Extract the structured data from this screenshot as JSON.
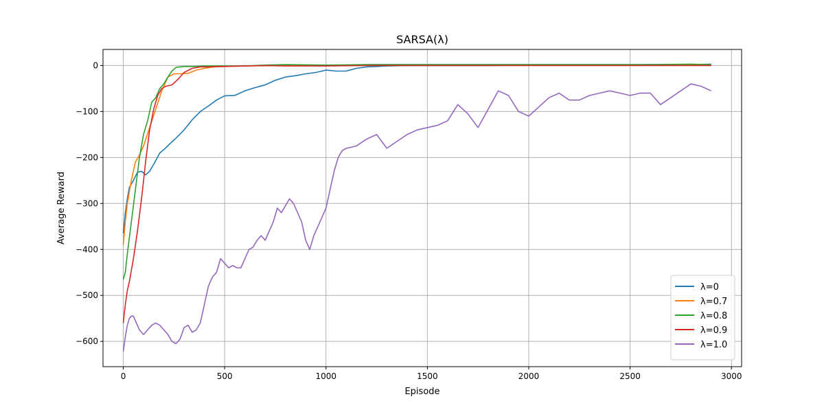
{
  "chart_data": {
    "type": "line",
    "title": "SARSA(λ)",
    "xlabel": "Episode",
    "ylabel": "Average Reward",
    "xlim": [
      -100,
      3050
    ],
    "ylim": [
      -655,
      35
    ],
    "xticks": [
      0,
      500,
      1000,
      1500,
      2000,
      2500,
      3000
    ],
    "yticks": [
      0,
      -100,
      -200,
      -300,
      -400,
      -500,
      -600
    ],
    "grid": true,
    "legend_position": "bottom-right",
    "series": [
      {
        "name": "λ=0",
        "color": "#1f77b4",
        "x": [
          0,
          10,
          20,
          30,
          50,
          70,
          90,
          110,
          130,
          150,
          180,
          200,
          230,
          260,
          300,
          340,
          380,
          420,
          460,
          500,
          550,
          600,
          650,
          700,
          750,
          800,
          850,
          900,
          950,
          1000,
          1050,
          1100,
          1150,
          1200,
          1250,
          1300,
          1400,
          1600,
          1800,
          2000,
          2200,
          2400,
          2600,
          2800,
          2900
        ],
        "y": [
          -365,
          -320,
          -290,
          -265,
          -250,
          -232,
          -230,
          -238,
          -230,
          -215,
          -190,
          -183,
          -170,
          -158,
          -140,
          -118,
          -100,
          -88,
          -75,
          -66,
          -65,
          -55,
          -48,
          -42,
          -32,
          -25,
          -22,
          -18,
          -15,
          -10,
          -12,
          -12,
          -6,
          -3,
          -2,
          -1,
          0,
          0,
          0,
          1,
          1,
          1,
          2,
          2,
          3
        ]
      },
      {
        "name": "λ=0.7",
        "color": "#ff7f0e",
        "x": [
          0,
          10,
          20,
          40,
          60,
          80,
          100,
          130,
          160,
          190,
          220,
          250,
          280,
          320,
          360,
          400,
          450,
          500,
          600,
          800,
          1000,
          1200,
          1400,
          1600,
          1800,
          2000,
          2200,
          2400,
          2600,
          2800,
          2900
        ],
        "y": [
          -390,
          -340,
          -300,
          -250,
          -210,
          -195,
          -175,
          -135,
          -95,
          -55,
          -25,
          -18,
          -18,
          -17,
          -10,
          -6,
          -3,
          -2,
          -1,
          0,
          0,
          1,
          1,
          1,
          1,
          1,
          1,
          1,
          1,
          1,
          1
        ]
      },
      {
        "name": "λ=0.8",
        "color": "#2ca02c",
        "x": [
          0,
          10,
          20,
          40,
          60,
          80,
          100,
          120,
          140,
          160,
          180,
          200,
          220,
          240,
          260,
          300,
          350,
          400,
          500,
          600,
          700,
          800,
          1000,
          1200,
          1400,
          1600,
          1800,
          2000,
          2200,
          2400,
          2600,
          2800,
          2900
        ],
        "y": [
          -465,
          -450,
          -410,
          -340,
          -270,
          -200,
          -150,
          -120,
          -80,
          -70,
          -50,
          -40,
          -25,
          -12,
          -4,
          -2,
          -2,
          -1,
          -1,
          -1,
          1,
          2,
          1,
          2,
          2,
          2,
          2,
          2,
          2,
          2,
          2,
          3,
          2
        ]
      },
      {
        "name": "λ=0.9",
        "color": "#d62728",
        "x": [
          0,
          10,
          20,
          30,
          50,
          70,
          90,
          110,
          130,
          150,
          170,
          190,
          210,
          240,
          270,
          300,
          340,
          380,
          420,
          460,
          500,
          600,
          700,
          800,
          1000,
          1200,
          1400,
          1600,
          1800,
          2000,
          2200,
          2400,
          2600,
          2800,
          2900
        ],
        "y": [
          -560,
          -520,
          -490,
          -470,
          -420,
          -360,
          -290,
          -210,
          -140,
          -95,
          -65,
          -50,
          -45,
          -42,
          -30,
          -15,
          -6,
          -3,
          -3,
          -2,
          -2,
          -1,
          0,
          -1,
          -1,
          0,
          0,
          0,
          0,
          0,
          0,
          0,
          0,
          0,
          0
        ]
      },
      {
        "name": "λ=1.0",
        "color": "#9467bd",
        "x": [
          0,
          10,
          20,
          30,
          40,
          50,
          60,
          80,
          100,
          120,
          140,
          160,
          180,
          200,
          220,
          240,
          260,
          280,
          300,
          320,
          340,
          360,
          380,
          400,
          420,
          440,
          460,
          480,
          500,
          520,
          540,
          560,
          580,
          600,
          620,
          640,
          660,
          680,
          700,
          720,
          740,
          760,
          780,
          800,
          820,
          840,
          860,
          880,
          900,
          920,
          940,
          960,
          980,
          1000,
          1020,
          1040,
          1060,
          1080,
          1100,
          1150,
          1200,
          1250,
          1300,
          1350,
          1400,
          1450,
          1500,
          1550,
          1600,
          1650,
          1700,
          1750,
          1800,
          1850,
          1900,
          1950,
          2000,
          2050,
          2100,
          2150,
          2200,
          2250,
          2300,
          2350,
          2400,
          2450,
          2500,
          2550,
          2600,
          2650,
          2700,
          2750,
          2800,
          2850,
          2900
        ],
        "y": [
          -622,
          -590,
          -565,
          -550,
          -545,
          -545,
          -555,
          -575,
          -585,
          -575,
          -565,
          -560,
          -565,
          -575,
          -585,
          -600,
          -605,
          -595,
          -570,
          -565,
          -580,
          -575,
          -560,
          -520,
          -480,
          -460,
          -450,
          -420,
          -430,
          -440,
          -435,
          -440,
          -440,
          -420,
          -400,
          -395,
          -380,
          -370,
          -380,
          -360,
          -340,
          -310,
          -320,
          -305,
          -290,
          -300,
          -320,
          -340,
          -380,
          -400,
          -370,
          -350,
          -330,
          -310,
          -270,
          -230,
          -200,
          -185,
          -180,
          -175,
          -160,
          -150,
          -180,
          -165,
          -150,
          -140,
          -135,
          -130,
          -120,
          -85,
          -105,
          -135,
          -95,
          -55,
          -65,
          -100,
          -110,
          -90,
          -70,
          -60,
          -75,
          -75,
          -65,
          -60,
          -55,
          -60,
          -65,
          -60,
          -60,
          -85,
          -70,
          -55,
          -40,
          -45,
          -55
        ]
      }
    ]
  }
}
